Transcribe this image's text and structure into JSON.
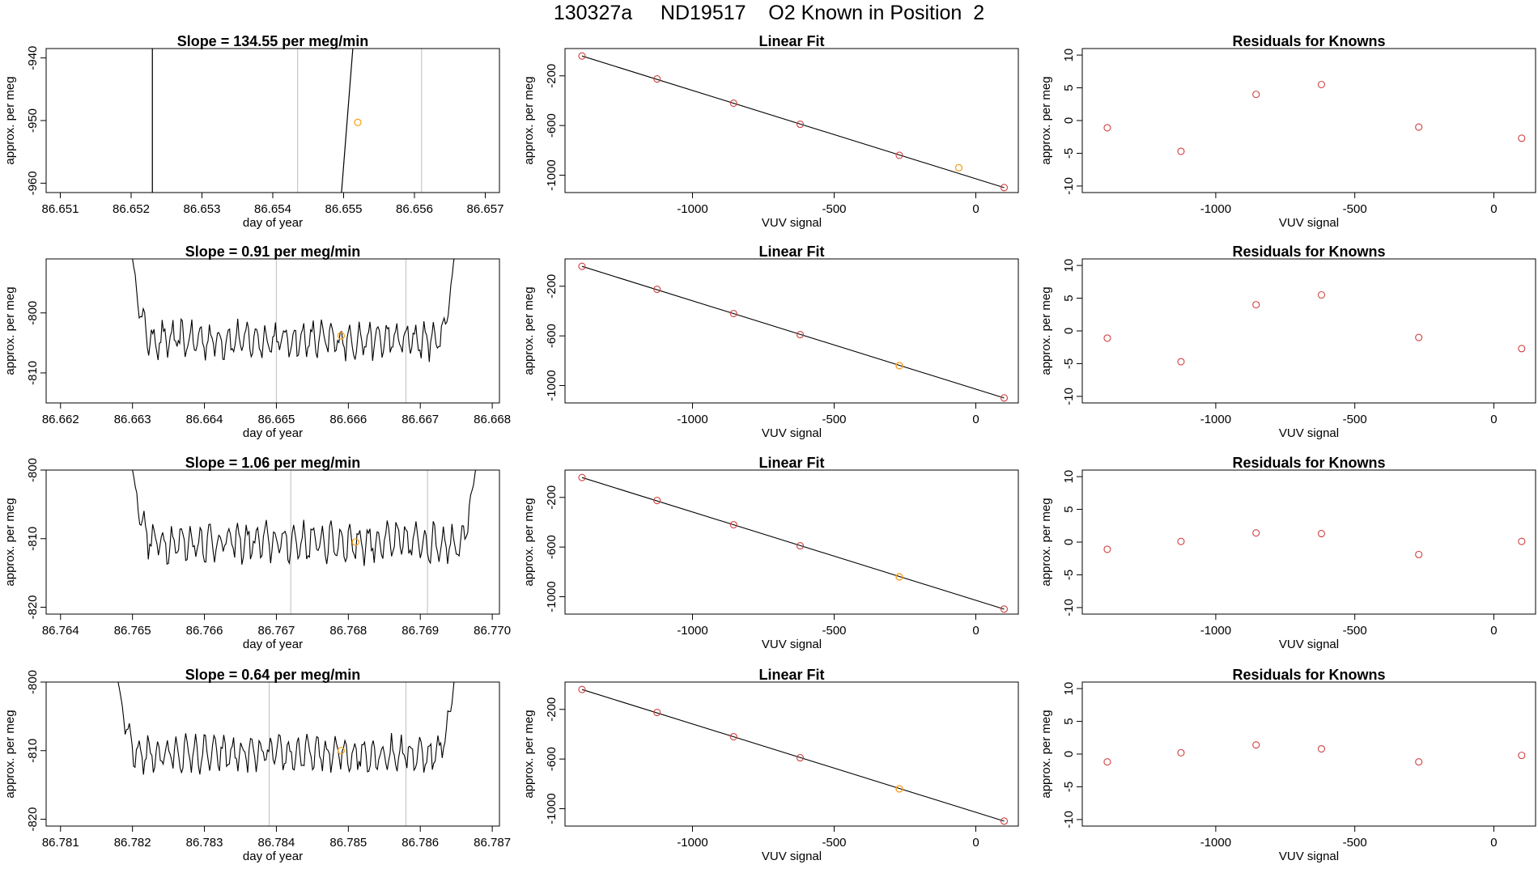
{
  "figure_title": "130327a     ND19517    O2 Known in Position  2",
  "colors": {
    "axes": "#000000",
    "line": "#000000",
    "vline": "#c8c8c8",
    "fit_point": "#d04040",
    "highlight_point": "#f5a623"
  },
  "chart_data": [
    {
      "type": "line",
      "row": 0,
      "col": 0,
      "title": "Slope =  134.55  per meg/min",
      "xlabel": "day of year",
      "ylabel": "approx. per meg",
      "xlim": [
        86.6508,
        86.6572
      ],
      "ylim": [
        -961.5,
        -938.5
      ],
      "xticks": [
        86.651,
        86.652,
        86.653,
        86.654,
        86.655,
        86.656,
        86.657
      ],
      "xtick_labels": [
        "86.651",
        "86.652",
        "86.653",
        "86.654",
        "86.655",
        "86.656",
        "86.657"
      ],
      "yticks": [
        -960,
        -950,
        -940
      ],
      "ytick_labels": [
        "-960",
        "-950",
        "-940"
      ],
      "vlines": [
        86.6523,
        86.65435,
        86.6561
      ],
      "series": [
        {
          "x": [
            86.6523,
            86.6523
          ],
          "y": [
            -961.5,
            -938.5
          ]
        },
        {
          "x": [
            86.65497,
            86.65513
          ],
          "y": [
            -961.5,
            -938.5
          ]
        }
      ],
      "highlight": {
        "x": 86.6552,
        "y": -950.3
      }
    },
    {
      "type": "scatter",
      "row": 0,
      "col": 1,
      "title": "Linear Fit",
      "xlabel": "VUV signal",
      "ylabel": "approx. per meg",
      "xlim": [
        -1450,
        150
      ],
      "ylim": [
        -1140,
        20
      ],
      "xticks": [
        -1000,
        -500,
        0
      ],
      "xtick_labels": [
        "-1000",
        "-500",
        "0"
      ],
      "yticks": [
        -1000,
        -600,
        -200
      ],
      "ytick_labels": [
        "-1000",
        "-600",
        "-200"
      ],
      "fit_line": {
        "x": [
          -1390,
          100
        ],
        "y": [
          -40,
          -1100
        ]
      },
      "points": {
        "x": [
          -1390,
          -1125,
          -855,
          -620,
          -270,
          100
        ],
        "y": [
          -40,
          -225,
          -420,
          -590,
          -840,
          -1100
        ]
      },
      "highlight": {
        "x": -60,
        "y": -940
      }
    },
    {
      "type": "scatter",
      "row": 0,
      "col": 2,
      "title": "Residuals for Knowns",
      "xlabel": "VUV signal",
      "ylabel": "approx. per meg",
      "xlim": [
        -1480,
        150
      ],
      "ylim": [
        -11,
        11
      ],
      "xticks": [
        -1000,
        -500,
        0
      ],
      "xtick_labels": [
        "-1000",
        "-500",
        "0"
      ],
      "yticks": [
        -10,
        -5,
        0,
        5,
        10
      ],
      "ytick_labels": [
        "-10",
        "-5",
        "0",
        "5",
        "10"
      ],
      "points": {
        "x": [
          -1390,
          -1125,
          -855,
          -620,
          -270,
          100
        ],
        "y": [
          -1.1,
          -4.7,
          4.0,
          5.5,
          -1.0,
          -2.7
        ]
      }
    },
    {
      "type": "line",
      "row": 1,
      "col": 0,
      "title": "Slope =  0.91  per meg/min",
      "xlabel": "day of year",
      "ylabel": "approx. per meg",
      "xlim": [
        86.6618,
        86.6681
      ],
      "ylim": [
        -815,
        -791
      ],
      "xticks": [
        86.662,
        86.663,
        86.664,
        86.665,
        86.666,
        86.667,
        86.668
      ],
      "xtick_labels": [
        "86.662",
        "86.663",
        "86.664",
        "86.665",
        "86.666",
        "86.667",
        "86.668"
      ],
      "yticks": [
        -810,
        -800
      ],
      "ytick_labels": [
        "-810",
        "-800"
      ],
      "vlines": [
        86.665,
        86.6668
      ],
      "signal": {
        "start": 86.663,
        "end": 86.6675,
        "mean": -804.5,
        "amplitude": 2.4,
        "edge_high": -791,
        "wave_period": 0.00013
      },
      "highlight": {
        "x": 86.6659,
        "y": -803.8
      }
    },
    {
      "type": "scatter",
      "row": 1,
      "col": 1,
      "title": "Linear Fit",
      "xlabel": "VUV signal",
      "ylabel": "approx. per meg",
      "xlim": [
        -1450,
        150
      ],
      "ylim": [
        -1140,
        20
      ],
      "xticks": [
        -1000,
        -500,
        0
      ],
      "xtick_labels": [
        "-1000",
        "-500",
        "0"
      ],
      "yticks": [
        -1000,
        -600,
        -200
      ],
      "ytick_labels": [
        "-1000",
        "-600",
        "-200"
      ],
      "fit_line": {
        "x": [
          -1390,
          100
        ],
        "y": [
          -40,
          -1100
        ]
      },
      "points": {
        "x": [
          -1390,
          -1125,
          -855,
          -620,
          -270,
          100
        ],
        "y": [
          -40,
          -225,
          -420,
          -590,
          -840,
          -1100
        ]
      },
      "highlight": {
        "x": -270,
        "y": -840
      }
    },
    {
      "type": "scatter",
      "row": 1,
      "col": 2,
      "title": "Residuals for Knowns",
      "xlabel": "VUV signal",
      "ylabel": "approx. per meg",
      "xlim": [
        -1480,
        150
      ],
      "ylim": [
        -11,
        11
      ],
      "xticks": [
        -1000,
        -500,
        0
      ],
      "xtick_labels": [
        "-1000",
        "-500",
        "0"
      ],
      "yticks": [
        -10,
        -5,
        0,
        5,
        10
      ],
      "ytick_labels": [
        "-10",
        "-5",
        "0",
        "5",
        "10"
      ],
      "points": {
        "x": [
          -1390,
          -1125,
          -855,
          -620,
          -270,
          100
        ],
        "y": [
          -1.1,
          -4.7,
          4.0,
          5.5,
          -1.0,
          -2.7
        ]
      }
    },
    {
      "type": "line",
      "row": 2,
      "col": 0,
      "title": "Slope =  1.06  per meg/min",
      "xlabel": "day of year",
      "ylabel": "approx. per meg",
      "xlim": [
        86.7638,
        86.7701
      ],
      "ylim": [
        -821,
        -800
      ],
      "xticks": [
        86.764,
        86.765,
        86.766,
        86.767,
        86.768,
        86.769,
        86.77
      ],
      "xtick_labels": [
        "86.764",
        "86.765",
        "86.766",
        "86.767",
        "86.768",
        "86.769",
        "86.770"
      ],
      "yticks": [
        -820,
        -810,
        -800
      ],
      "ytick_labels": [
        "-820",
        "-810",
        "-800"
      ],
      "vlines": [
        86.7672,
        86.7691
      ],
      "signal": {
        "start": 86.765,
        "end": 86.7698,
        "mean": -810.5,
        "amplitude": 2.2,
        "edge_high": -800,
        "wave_period": 0.00013
      },
      "highlight": {
        "x": 86.7681,
        "y": -810.5
      }
    },
    {
      "type": "scatter",
      "row": 2,
      "col": 1,
      "title": "Linear Fit",
      "xlabel": "VUV signal",
      "ylabel": "approx. per meg",
      "xlim": [
        -1450,
        150
      ],
      "ylim": [
        -1140,
        20
      ],
      "xticks": [
        -1000,
        -500,
        0
      ],
      "xtick_labels": [
        "-1000",
        "-500",
        "0"
      ],
      "yticks": [
        -1000,
        -600,
        -200
      ],
      "ytick_labels": [
        "-1000",
        "-600",
        "-200"
      ],
      "fit_line": {
        "x": [
          -1390,
          100
        ],
        "y": [
          -40,
          -1100
        ]
      },
      "points": {
        "x": [
          -1390,
          -1125,
          -855,
          -620,
          -270,
          100
        ],
        "y": [
          -40,
          -225,
          -420,
          -590,
          -840,
          -1100
        ]
      },
      "highlight": {
        "x": -270,
        "y": -840
      }
    },
    {
      "type": "scatter",
      "row": 2,
      "col": 2,
      "title": "Residuals for Knowns",
      "xlabel": "VUV signal",
      "ylabel": "approx. per meg",
      "xlim": [
        -1480,
        150
      ],
      "ylim": [
        -11,
        11
      ],
      "xticks": [
        -1000,
        -500,
        0
      ],
      "xtick_labels": [
        "-1000",
        "-500",
        "0"
      ],
      "yticks": [
        -10,
        -5,
        0,
        5,
        10
      ],
      "ytick_labels": [
        "-10",
        "-5",
        "0",
        "5",
        "10"
      ],
      "points": {
        "x": [
          -1390,
          -1125,
          -855,
          -620,
          -270,
          100
        ],
        "y": [
          -1.1,
          0.1,
          1.4,
          1.3,
          -1.9,
          0.1
        ]
      }
    },
    {
      "type": "line",
      "row": 3,
      "col": 0,
      "title": "Slope =  0.64  per meg/min",
      "xlabel": "day of year",
      "ylabel": "approx. per meg",
      "xlim": [
        86.7808,
        86.7871
      ],
      "ylim": [
        -821,
        -800
      ],
      "xticks": [
        86.781,
        86.782,
        86.783,
        86.784,
        86.785,
        86.786,
        86.787
      ],
      "xtick_labels": [
        "86.781",
        "86.782",
        "86.783",
        "86.784",
        "86.785",
        "86.786",
        "86.787"
      ],
      "yticks": [
        -820,
        -810,
        -800
      ],
      "ytick_labels": [
        "-820",
        "-810",
        "-800"
      ],
      "vlines": [
        86.7839,
        86.7858
      ],
      "signal": {
        "start": 86.7818,
        "end": 86.7865,
        "mean": -810.5,
        "amplitude": 2.0,
        "edge_high": -800,
        "wave_period": 0.00013
      },
      "highlight": {
        "x": 86.7849,
        "y": -810.0
      }
    },
    {
      "type": "scatter",
      "row": 3,
      "col": 1,
      "title": "Linear Fit",
      "xlabel": "VUV signal",
      "ylabel": "approx. per meg",
      "xlim": [
        -1450,
        150
      ],
      "ylim": [
        -1140,
        20
      ],
      "xticks": [
        -1000,
        -500,
        0
      ],
      "xtick_labels": [
        "-1000",
        "-500",
        "0"
      ],
      "yticks": [
        -1000,
        -600,
        -200
      ],
      "ytick_labels": [
        "-1000",
        "-600",
        "-200"
      ],
      "fit_line": {
        "x": [
          -1390,
          100
        ],
        "y": [
          -40,
          -1100
        ]
      },
      "points": {
        "x": [
          -1390,
          -1125,
          -855,
          -620,
          -270,
          100
        ],
        "y": [
          -40,
          -225,
          -420,
          -590,
          -840,
          -1100
        ]
      },
      "highlight": {
        "x": -270,
        "y": -840
      }
    },
    {
      "type": "scatter",
      "row": 3,
      "col": 2,
      "title": "Residuals for Knowns",
      "xlabel": "VUV signal",
      "ylabel": "approx. per meg",
      "xlim": [
        -1480,
        150
      ],
      "ylim": [
        -11,
        11
      ],
      "xticks": [
        -1000,
        -500,
        0
      ],
      "xtick_labels": [
        "-1000",
        "-500",
        "0"
      ],
      "yticks": [
        -10,
        -5,
        0,
        5,
        10
      ],
      "ytick_labels": [
        "-10",
        "-5",
        "0",
        "5",
        "10"
      ],
      "points": {
        "x": [
          -1390,
          -1125,
          -855,
          -620,
          -270,
          100
        ],
        "y": [
          -1.2,
          0.2,
          1.4,
          0.8,
          -1.2,
          -0.2
        ]
      }
    }
  ]
}
